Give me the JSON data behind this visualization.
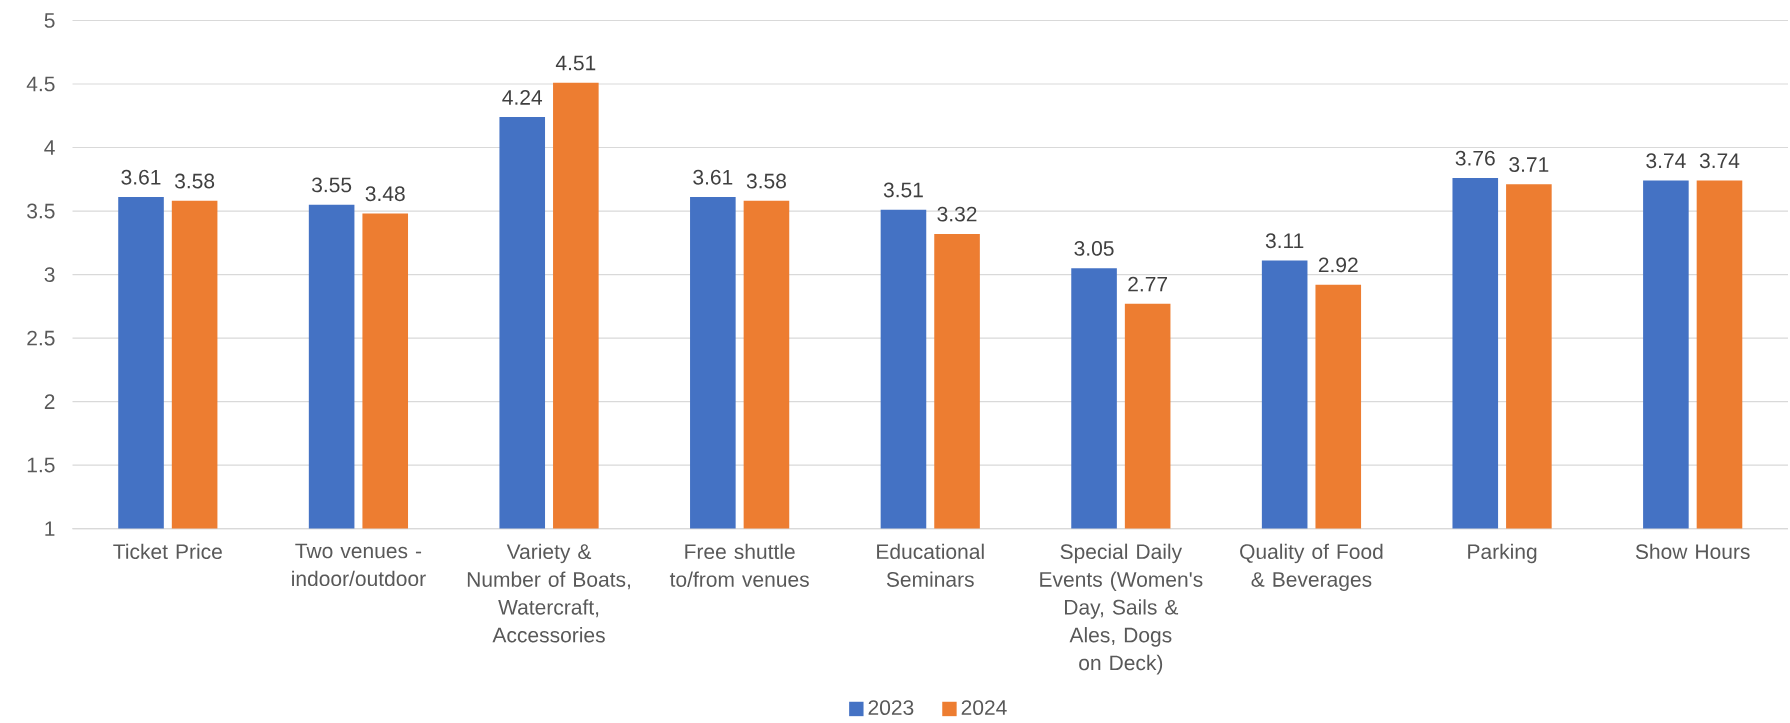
{
  "chart_data": {
    "type": "bar",
    "categories": [
      "Ticket Price",
      "Two venues - indoor/outdoor",
      "Variety & Number of Boats, Watercraft, Accessories",
      "Free shuttle to/from venues",
      "Educational Seminars",
      "Special Daily Events (Women's Day, Sails & Ales, Dogs on Deck)",
      "Quality of Food & Beverages",
      "Parking",
      "Show Hours"
    ],
    "series": [
      {
        "name": "2023",
        "color": "#4472c4",
        "values": [
          3.61,
          3.55,
          4.24,
          3.61,
          3.51,
          3.05,
          3.11,
          3.76,
          3.74
        ]
      },
      {
        "name": "2024",
        "color": "#ed7d31",
        "values": [
          3.58,
          3.48,
          4.51,
          3.58,
          3.32,
          2.77,
          2.92,
          3.71,
          3.74
        ]
      }
    ],
    "ylim": [
      1,
      5
    ],
    "yticks": [
      1,
      1.5,
      2,
      2.5,
      3,
      3.5,
      4,
      4.5,
      5
    ],
    "grid": "y",
    "legend": "bottom",
    "data_labels": true
  }
}
